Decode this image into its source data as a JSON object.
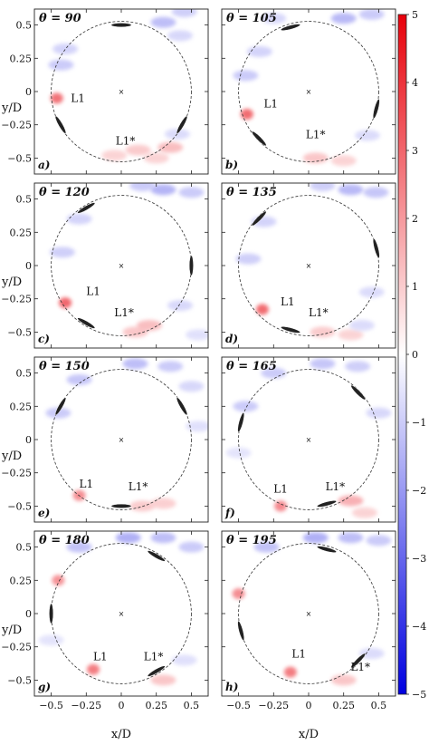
{
  "chart_data": {
    "type": "heatmap",
    "xlabel": "x/D",
    "ylabel": "y/D",
    "xlim": [
      -0.62,
      0.62
    ],
    "ylim": [
      -0.62,
      0.62
    ],
    "xticks": [
      -0.5,
      -0.25,
      0,
      0.25,
      0.5
    ],
    "xtick_labels": [
      "−0.5",
      "−0.25",
      "0",
      "0.25",
      "0.5"
    ],
    "yticks": [
      0.5,
      0.25,
      0,
      -0.25,
      -0.5
    ],
    "ytick_labels": [
      "0.5",
      "0.25",
      "0",
      "−0.25",
      "−0.5"
    ],
    "colorbar": {
      "range": [
        -5,
        5
      ],
      "ticks": [
        5,
        4,
        3,
        2,
        1,
        0,
        -1,
        -2,
        -3,
        -4,
        -5
      ],
      "tick_labels": [
        "5",
        "4",
        "3",
        "2",
        "1",
        "0",
        "−1",
        "−2",
        "−3",
        "−4",
        "−5"
      ],
      "colors": {
        "pos": "#e8000a",
        "zero": "#ffffff",
        "neg": "#0000e0"
      }
    },
    "reference_circle": {
      "center": [
        0,
        0
      ],
      "radius": 0.5
    },
    "panels": [
      {
        "title": "θ = 90",
        "label": "a)",
        "blades": [
          {
            "angle": 90
          },
          {
            "angle": 210
          },
          {
            "angle": 330
          }
        ],
        "annotations": [
          {
            "text": "L1",
            "x": -0.36,
            "y": -0.08
          },
          {
            "text": "L1*",
            "x": -0.04,
            "y": -0.4
          }
        ],
        "vortices": [
          {
            "x": -0.46,
            "y": -0.05,
            "v": 3.2
          },
          {
            "x": -0.43,
            "y": 0.2,
            "v": -1.2
          },
          {
            "x": -0.4,
            "y": 0.32,
            "v": -1.0
          },
          {
            "x": 0.3,
            "y": 0.52,
            "v": -1.5
          },
          {
            "x": 0.45,
            "y": 0.6,
            "v": -1.1
          },
          {
            "x": 0.42,
            "y": 0.42,
            "v": -0.9
          },
          {
            "x": 0.12,
            "y": -0.44,
            "v": 1.2
          },
          {
            "x": 0.25,
            "y": -0.5,
            "v": 1.0
          },
          {
            "x": -0.05,
            "y": -0.48,
            "v": 1.0
          },
          {
            "x": 0.4,
            "y": -0.32,
            "v": -0.8
          },
          {
            "x": 0.35,
            "y": -0.42,
            "v": 1.5
          }
        ]
      },
      {
        "title": "θ = 105",
        "label": "b)",
        "blades": [
          {
            "angle": 105
          },
          {
            "angle": 225
          },
          {
            "angle": 345
          }
        ],
        "annotations": [
          {
            "text": "L1",
            "x": -0.32,
            "y": -0.12
          },
          {
            "text": "L1*",
            "x": -0.02,
            "y": -0.35
          }
        ],
        "vortices": [
          {
            "x": -0.44,
            "y": -0.17,
            "v": 3.4
          },
          {
            "x": -0.45,
            "y": 0.12,
            "v": -1.2
          },
          {
            "x": -0.35,
            "y": 0.3,
            "v": -1.0
          },
          {
            "x": 0.25,
            "y": 0.55,
            "v": -1.6
          },
          {
            "x": 0.45,
            "y": 0.58,
            "v": -1.2
          },
          {
            "x": -0.25,
            "y": 0.55,
            "v": -0.9
          },
          {
            "x": 0.05,
            "y": -0.5,
            "v": 1.3
          },
          {
            "x": 0.25,
            "y": -0.52,
            "v": 1.0
          },
          {
            "x": 0.42,
            "y": -0.33,
            "v": -0.8
          }
        ]
      },
      {
        "title": "θ = 120",
        "label": "c)",
        "blades": [
          {
            "angle": 120
          },
          {
            "angle": 240
          },
          {
            "angle": 0
          }
        ],
        "annotations": [
          {
            "text": "L1",
            "x": -0.25,
            "y": -0.22
          },
          {
            "text": "L1*",
            "x": -0.05,
            "y": -0.38
          }
        ],
        "vortices": [
          {
            "x": -0.4,
            "y": -0.28,
            "v": 3.5
          },
          {
            "x": -0.42,
            "y": 0.1,
            "v": -1.1
          },
          {
            "x": -0.3,
            "y": 0.35,
            "v": -1.0
          },
          {
            "x": 0.3,
            "y": 0.57,
            "v": -1.7
          },
          {
            "x": 0.5,
            "y": 0.55,
            "v": -1.2
          },
          {
            "x": 0.15,
            "y": 0.6,
            "v": -1.2
          },
          {
            "x": 0.1,
            "y": -0.5,
            "v": 1.3
          },
          {
            "x": 0.2,
            "y": -0.45,
            "v": 1.5
          },
          {
            "x": 0.42,
            "y": -0.3,
            "v": -0.9
          },
          {
            "x": 0.55,
            "y": -0.52,
            "v": -0.7
          }
        ]
      },
      {
        "title": "θ = 135",
        "label": "d)",
        "blades": [
          {
            "angle": 135
          },
          {
            "angle": 255
          },
          {
            "angle": 15
          }
        ],
        "annotations": [
          {
            "text": "L1",
            "x": -0.2,
            "y": -0.3
          },
          {
            "text": "L1*",
            "x": 0.0,
            "y": -0.38
          }
        ],
        "vortices": [
          {
            "x": -0.33,
            "y": -0.33,
            "v": 3.4
          },
          {
            "x": -0.43,
            "y": 0.05,
            "v": -1.1
          },
          {
            "x": -0.32,
            "y": 0.33,
            "v": -1.0
          },
          {
            "x": 0.3,
            "y": 0.57,
            "v": -1.6
          },
          {
            "x": 0.48,
            "y": 0.55,
            "v": -1.3
          },
          {
            "x": 0.1,
            "y": 0.6,
            "v": -1.1
          },
          {
            "x": 0.1,
            "y": -0.5,
            "v": 1.2
          },
          {
            "x": 0.3,
            "y": -0.52,
            "v": 1.0
          },
          {
            "x": 0.45,
            "y": -0.2,
            "v": -0.8
          },
          {
            "x": 0.38,
            "y": -0.45,
            "v": -0.8
          }
        ]
      },
      {
        "title": "θ = 150",
        "label": "e)",
        "blades": [
          {
            "angle": 150
          },
          {
            "angle": 270
          },
          {
            "angle": 30
          }
        ],
        "annotations": [
          {
            "text": "L1",
            "x": -0.3,
            "y": -0.36
          },
          {
            "text": "L1*",
            "x": 0.05,
            "y": -0.38
          }
        ],
        "vortices": [
          {
            "x": -0.3,
            "y": -0.42,
            "v": 2.6
          },
          {
            "x": -0.45,
            "y": 0.2,
            "v": -1.2
          },
          {
            "x": -0.3,
            "y": 0.45,
            "v": -1.3
          },
          {
            "x": 0.1,
            "y": 0.57,
            "v": -1.5
          },
          {
            "x": 0.35,
            "y": 0.55,
            "v": -1.2
          },
          {
            "x": 0.5,
            "y": 0.4,
            "v": -0.9
          },
          {
            "x": 0.15,
            "y": -0.5,
            "v": 1.2
          },
          {
            "x": 0.3,
            "y": -0.48,
            "v": 1.1
          },
          {
            "x": 0.55,
            "y": 0.1,
            "v": -0.7
          }
        ]
      },
      {
        "title": "θ = 165",
        "label": "f)",
        "blades": [
          {
            "angle": 165
          },
          {
            "angle": 285
          },
          {
            "angle": 45
          }
        ],
        "annotations": [
          {
            "text": "L1",
            "x": -0.25,
            "y": -0.4
          },
          {
            "text": "L1*",
            "x": 0.12,
            "y": -0.38
          }
        ],
        "vortices": [
          {
            "x": -0.2,
            "y": -0.5,
            "v": 2.7
          },
          {
            "x": -0.45,
            "y": 0.25,
            "v": -1.2
          },
          {
            "x": -0.25,
            "y": 0.5,
            "v": -1.2
          },
          {
            "x": 0.1,
            "y": 0.57,
            "v": -1.3
          },
          {
            "x": 0.35,
            "y": 0.55,
            "v": -1.1
          },
          {
            "x": 0.5,
            "y": 0.2,
            "v": -0.9
          },
          {
            "x": 0.3,
            "y": -0.46,
            "v": 1.8
          },
          {
            "x": 0.4,
            "y": -0.55,
            "v": 1.0
          },
          {
            "x": -0.5,
            "y": -0.1,
            "v": -0.6
          }
        ]
      },
      {
        "title": "θ = 180",
        "label": "g)",
        "blades": [
          {
            "angle": 180
          },
          {
            "angle": 300
          },
          {
            "angle": 60
          }
        ],
        "annotations": [
          {
            "text": "L1",
            "x": -0.2,
            "y": -0.35
          },
          {
            "text": "L1*",
            "x": 0.16,
            "y": -0.35
          }
        ],
        "vortices": [
          {
            "x": -0.2,
            "y": -0.42,
            "v": 3.0
          },
          {
            "x": -0.45,
            "y": 0.25,
            "v": 2.5
          },
          {
            "x": -0.3,
            "y": 0.5,
            "v": -1.4
          },
          {
            "x": 0.05,
            "y": 0.57,
            "v": -1.8
          },
          {
            "x": 0.3,
            "y": 0.57,
            "v": -1.5
          },
          {
            "x": 0.5,
            "y": 0.5,
            "v": -1.2
          },
          {
            "x": 0.3,
            "y": -0.5,
            "v": 1.3
          },
          {
            "x": 0.45,
            "y": -0.35,
            "v": -0.7
          },
          {
            "x": -0.5,
            "y": -0.2,
            "v": -0.6
          }
        ]
      },
      {
        "title": "θ = 195",
        "label": "h)",
        "blades": [
          {
            "angle": 195
          },
          {
            "angle": 315
          },
          {
            "angle": 75
          }
        ],
        "annotations": [
          {
            "text": "L1",
            "x": -0.12,
            "y": -0.33
          },
          {
            "text": "L1*",
            "x": 0.3,
            "y": -0.43
          }
        ],
        "vortices": [
          {
            "x": -0.13,
            "y": -0.44,
            "v": 3.0
          },
          {
            "x": -0.5,
            "y": 0.15,
            "v": 2.6
          },
          {
            "x": -0.3,
            "y": 0.5,
            "v": -1.4
          },
          {
            "x": 0.05,
            "y": 0.57,
            "v": -1.8
          },
          {
            "x": 0.3,
            "y": 0.57,
            "v": -1.5
          },
          {
            "x": 0.5,
            "y": 0.55,
            "v": -1.2
          },
          {
            "x": 0.25,
            "y": -0.5,
            "v": 1.3
          },
          {
            "x": 0.45,
            "y": -0.3,
            "v": -0.8
          }
        ]
      }
    ]
  }
}
